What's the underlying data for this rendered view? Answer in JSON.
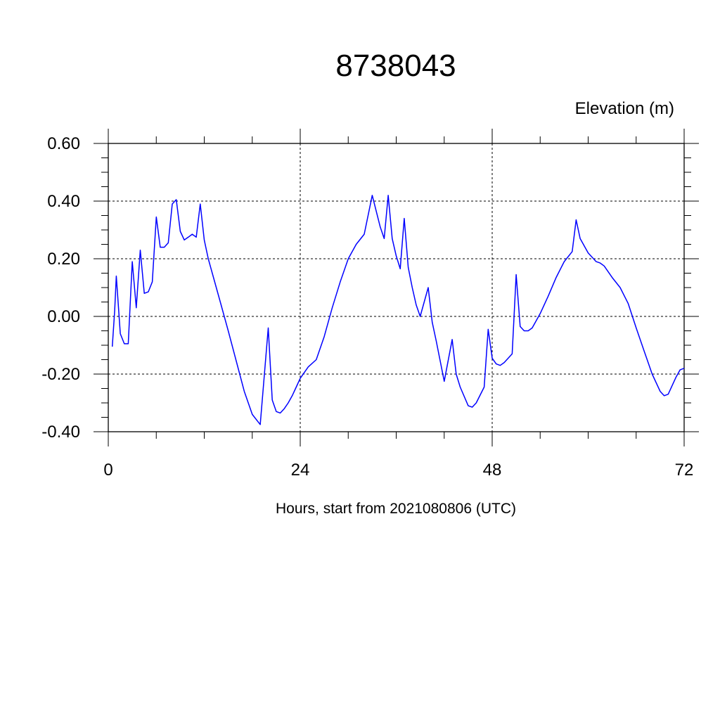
{
  "chart_data": {
    "type": "line",
    "title": "8738043",
    "ylabel": "Elevation (m)",
    "xlabel": "Hours, start from 2021080806 (UTC)",
    "xlim": [
      0,
      72
    ],
    "ylim": [
      -0.4,
      0.6
    ],
    "x_ticks": [
      0,
      24,
      48,
      72
    ],
    "x_tick_labels": [
      "0",
      "24",
      "48",
      "72"
    ],
    "y_ticks": [
      -0.4,
      -0.2,
      0.0,
      0.2,
      0.4,
      0.6
    ],
    "y_tick_labels": [
      "-0.40",
      "-0.20",
      "0.00",
      "0.20",
      "0.40",
      "0.60"
    ],
    "grid": true,
    "series_color": "#0000ff",
    "series": [
      {
        "x": [
          0.5,
          0.8,
          1.0,
          1.5,
          2.0,
          2.5,
          3.0,
          3.5,
          4.0,
          4.5,
          5.0,
          5.5,
          6.0,
          6.5,
          7.0,
          7.5,
          8.0,
          8.5,
          9.0,
          9.5,
          10.0,
          10.5,
          11.0,
          11.5,
          12.0,
          12.5,
          13.0,
          14.0,
          15.0,
          16.0,
          17.0,
          18.0,
          19.0,
          20.0,
          20.5,
          21.0,
          21.5,
          22.0,
          22.5,
          23.0,
          23.5,
          24.0,
          25.0,
          26.0,
          27.0,
          28.0,
          29.0,
          30.0,
          31.0,
          32.0,
          33.0,
          34.0,
          34.5,
          35.0,
          35.5,
          36.0,
          36.5,
          37.0,
          37.5,
          38.0,
          38.5,
          39.0,
          40.0,
          40.5,
          41.0,
          42.0,
          43.0,
          43.5,
          44.0,
          45.0,
          45.5,
          46.0,
          47.0,
          47.5,
          48.0,
          48.5,
          49.0,
          49.5,
          50.0,
          50.5,
          51.0,
          51.5,
          52.0,
          52.5,
          53.0,
          54.0,
          55.0,
          56.0,
          57.0,
          58.0,
          58.5,
          59.0,
          60.0,
          61.0,
          61.5,
          62.0,
          63.0,
          64.0,
          65.0,
          66.0,
          67.0,
          68.0,
          69.0,
          69.5,
          70.0,
          71.0,
          71.5,
          72.0
        ],
        "y": [
          -0.105,
          0.02,
          0.14,
          -0.06,
          -0.095,
          -0.095,
          0.19,
          0.03,
          0.23,
          0.08,
          0.085,
          0.12,
          0.345,
          0.24,
          0.24,
          0.255,
          0.39,
          0.405,
          0.295,
          0.265,
          0.275,
          0.285,
          0.275,
          0.39,
          0.265,
          0.2,
          0.15,
          0.05,
          -0.05,
          -0.155,
          -0.26,
          -0.34,
          -0.375,
          -0.04,
          -0.29,
          -0.33,
          -0.335,
          -0.32,
          -0.3,
          -0.275,
          -0.245,
          -0.215,
          -0.175,
          -0.15,
          -0.07,
          0.03,
          0.12,
          0.2,
          0.25,
          0.285,
          0.42,
          0.31,
          0.27,
          0.42,
          0.27,
          0.21,
          0.165,
          0.34,
          0.17,
          0.1,
          0.04,
          0.0,
          0.1,
          -0.02,
          -0.085,
          -0.225,
          -0.08,
          -0.2,
          -0.245,
          -0.31,
          -0.315,
          -0.3,
          -0.245,
          -0.045,
          -0.145,
          -0.165,
          -0.17,
          -0.16,
          -0.145,
          -0.13,
          0.145,
          -0.035,
          -0.05,
          -0.05,
          -0.04,
          0.01,
          0.07,
          0.135,
          0.19,
          0.225,
          0.335,
          0.27,
          0.22,
          0.19,
          0.185,
          0.175,
          0.135,
          0.1,
          0.045,
          -0.04,
          -0.12,
          -0.2,
          -0.26,
          -0.275,
          -0.27,
          -0.21,
          -0.185,
          -0.18
        ]
      }
    ]
  }
}
